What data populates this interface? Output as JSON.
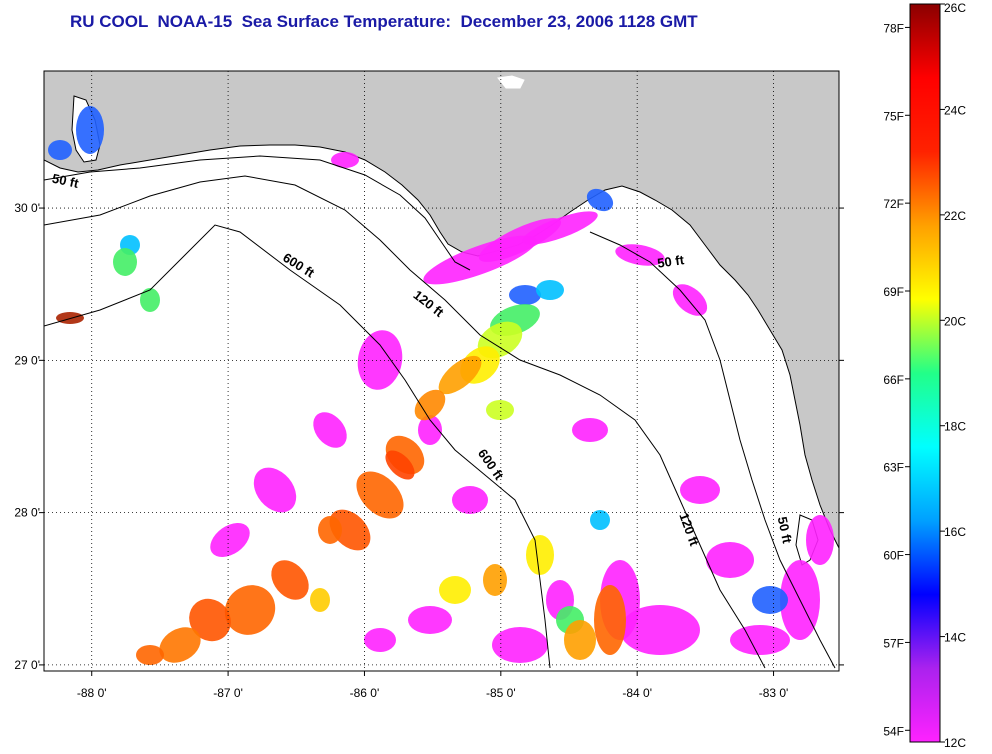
{
  "title": "RU COOL  NOAA-15  Sea Surface Temperature:  December 23, 2006 1128 GMT",
  "map": {
    "lon_min": -88.35,
    "lon_max": -82.52,
    "lat_min": 26.96,
    "lat_max": 30.9,
    "x_ticks": [
      {
        "value": -88,
        "label": "-88 0'"
      },
      {
        "value": -87,
        "label": "-87 0'"
      },
      {
        "value": -86,
        "label": "-86 0'"
      },
      {
        "value": -85,
        "label": "-85 0'"
      },
      {
        "value": -84,
        "label": "-84 0'"
      },
      {
        "value": -83,
        "label": "-83 0'"
      }
    ],
    "y_ticks": [
      {
        "value": 30,
        "label": "30 0'"
      },
      {
        "value": 29,
        "label": "29 0'"
      },
      {
        "value": 28,
        "label": "28 0'"
      },
      {
        "value": 27,
        "label": "27 0'"
      }
    ],
    "land_color": "#c8c8c8",
    "water_color": "#ffffff",
    "grid": true,
    "contours": [
      {
        "label": "50 ft",
        "label_lon": -88.2,
        "label_lat": 30.15,
        "angle": 12
      },
      {
        "label": "50 ft",
        "label_lon": -83.75,
        "label_lat": 29.62,
        "angle": -8
      },
      {
        "label": "50 ft",
        "label_lon": -82.95,
        "label_lat": 27.88,
        "angle": 78
      },
      {
        "label": "120 ft",
        "label_lon": -85.55,
        "label_lat": 29.35,
        "angle": 38
      },
      {
        "label": "120 ft",
        "label_lon": -83.65,
        "label_lat": 27.88,
        "angle": 70
      },
      {
        "label": "600 ft",
        "label_lon": -86.5,
        "label_lat": 29.6,
        "angle": 32
      },
      {
        "label": "600 ft",
        "label_lon": -85.1,
        "label_lat": 28.3,
        "angle": 55
      }
    ]
  },
  "colorbar": {
    "min_c": 12,
    "max_c": 26,
    "celsius_labels": [
      "26C",
      "24C",
      "22C",
      "20C",
      "18C",
      "16C",
      "14C",
      "12C"
    ],
    "fahrenheit_labels": [
      "78F",
      "75F",
      "72F",
      "69F",
      "66F",
      "63F",
      "60F",
      "57F",
      "54F"
    ],
    "fahrenheit_values": [
      78,
      75,
      72,
      69,
      66,
      63,
      60,
      57,
      54
    ],
    "stops": [
      "#ff22ff",
      "#aa22ee",
      "#0000ff",
      "#00a0ff",
      "#00ffff",
      "#22ff88",
      "#ffff00",
      "#ffa000",
      "#ff2200",
      "#ff0000",
      "#8b0000"
    ]
  }
}
